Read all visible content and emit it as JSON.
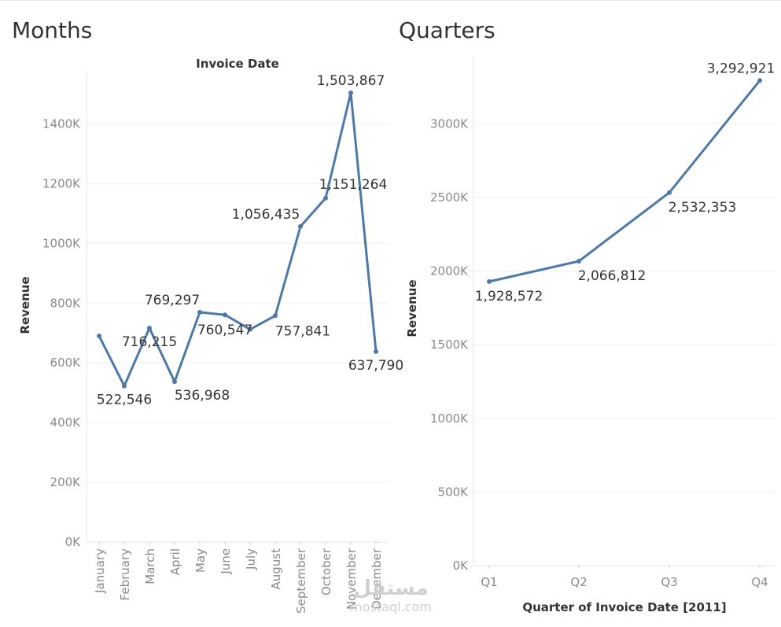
{
  "watermark": {
    "brand": "مستقل",
    "site": "mostaql.com"
  },
  "chart_data": [
    {
      "type": "line",
      "title": "Months",
      "subtitle": "Invoice Date",
      "xlabel": "",
      "ylabel": "Revenue",
      "ylim": [
        0,
        1600000
      ],
      "y_ticks": [
        0,
        200000,
        400000,
        600000,
        800000,
        1000000,
        1200000,
        1400000
      ],
      "y_tick_labels": [
        "0K",
        "200K",
        "400K",
        "600K",
        "800K",
        "1000K",
        "1200K",
        "1400K"
      ],
      "categories": [
        "January",
        "February",
        "March",
        "April",
        "May",
        "June",
        "July",
        "August",
        "September",
        "October",
        "November",
        "December"
      ],
      "values": [
        690000,
        522546,
        716215,
        536968,
        769297,
        760547,
        712000,
        757841,
        1056435,
        1151264,
        1503867,
        637790
      ],
      "data_labels": [
        "",
        "522,546",
        "716,215",
        "536,968",
        "769,297",
        "760,547",
        "",
        "757,841",
        "1,056,435",
        "1,151,264",
        "1,503,867",
        "637,790"
      ],
      "color": "#4e79a7",
      "grid": true
    },
    {
      "type": "line",
      "title": "Quarters",
      "subtitle": "",
      "xlabel": "Quarter of Invoice Date [2011]",
      "ylabel": "Revenue",
      "ylim": [
        0,
        3400000
      ],
      "y_ticks": [
        0,
        500000,
        1000000,
        1500000,
        2000000,
        2500000,
        3000000
      ],
      "y_tick_labels": [
        "0K",
        "500K",
        "1000K",
        "1500K",
        "2000K",
        "2500K",
        "3000K"
      ],
      "categories": [
        "Q1",
        "Q2",
        "Q3",
        "Q4"
      ],
      "values": [
        1928572,
        2066812,
        2532353,
        3292921
      ],
      "data_labels": [
        "1,928,572",
        "2,066,812",
        "2,532,353",
        "3,292,921"
      ],
      "color": "#4e79a7",
      "grid": true
    }
  ]
}
